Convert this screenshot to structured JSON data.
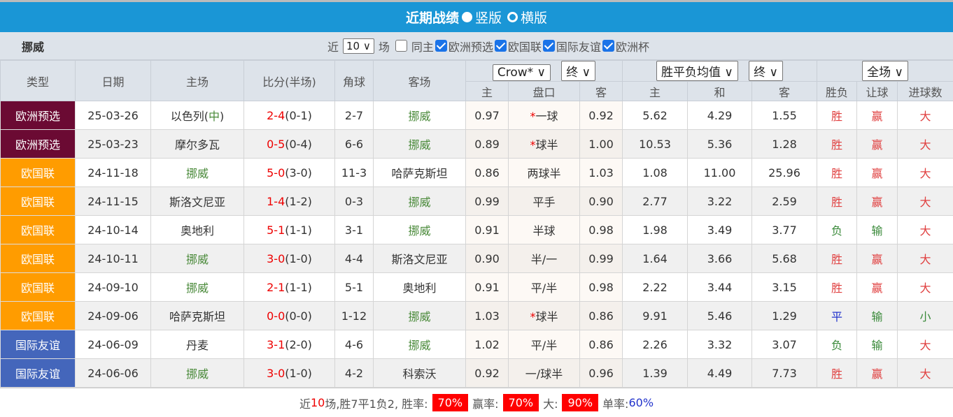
{
  "title": "近期战绩",
  "view_options": [
    "竖版",
    "横版"
  ],
  "view_selected": "竖版",
  "team": "挪威",
  "filters": {
    "prefix": "近",
    "count": "10",
    "suffix": "场",
    "same_home": "同主",
    "same_home_checked": false,
    "competitions": [
      {
        "label": "欧洲预选",
        "checked": true
      },
      {
        "label": "欧国联",
        "checked": true
      },
      {
        "label": "国际友谊",
        "checked": true
      },
      {
        "label": "欧洲杯",
        "checked": true
      }
    ]
  },
  "headers": {
    "type": "类型",
    "date": "日期",
    "home": "主场",
    "score": "比分(半场)",
    "corner": "角球",
    "away": "客场",
    "ah_company": "Crow*",
    "ah_stage": "终",
    "eu_type": "胜平负均值",
    "eu_stage": "终",
    "period": "全场",
    "ah_home": "主",
    "ah_line": "盘口",
    "ah_away": "客",
    "eu_home": "主",
    "eu_draw": "和",
    "eu_away": "客",
    "result": "胜负",
    "handicap": "让球",
    "goals": "进球数"
  },
  "colors": {
    "欧洲预选": "#6b0a33",
    "欧国联": "#ff9c00",
    "国际友谊": "#4466bb"
  },
  "rows": [
    {
      "type": "欧洲预选",
      "date": "25-03-26",
      "home": "以色列",
      "neutral": "中",
      "score": "2-4",
      "half": "(0-1)",
      "corner": "2-7",
      "away": "挪威",
      "team_side": "away",
      "ah_h": "0.97",
      "star": "*",
      "line": "一球",
      "ah_a": "0.92",
      "w": "5.62",
      "d": "4.29",
      "l": "1.55",
      "res": "胜",
      "hc": "赢",
      "ou": "大"
    },
    {
      "type": "欧洲预选",
      "date": "25-03-23",
      "home": "摩尔多瓦",
      "neutral": "",
      "score": "0-5",
      "half": "(0-4)",
      "corner": "6-6",
      "away": "挪威",
      "team_side": "away",
      "ah_h": "0.89",
      "star": "*",
      "line": "球半",
      "ah_a": "1.00",
      "w": "10.53",
      "d": "5.36",
      "l": "1.28",
      "res": "胜",
      "hc": "赢",
      "ou": "大"
    },
    {
      "type": "欧国联",
      "date": "24-11-18",
      "home": "挪威",
      "neutral": "",
      "score": "5-0",
      "half": "(3-0)",
      "corner": "11-3",
      "away": "哈萨克斯坦",
      "team_side": "home",
      "ah_h": "0.86",
      "star": "",
      "line": "两球半",
      "ah_a": "1.03",
      "w": "1.08",
      "d": "11.00",
      "l": "25.96",
      "res": "胜",
      "hc": "赢",
      "ou": "大"
    },
    {
      "type": "欧国联",
      "date": "24-11-15",
      "home": "斯洛文尼亚",
      "neutral": "",
      "score": "1-4",
      "half": "(1-2)",
      "corner": "0-3",
      "away": "挪威",
      "team_side": "away",
      "ah_h": "0.99",
      "star": "",
      "line": "平手",
      "ah_a": "0.90",
      "w": "2.77",
      "d": "3.22",
      "l": "2.59",
      "res": "胜",
      "hc": "赢",
      "ou": "大"
    },
    {
      "type": "欧国联",
      "date": "24-10-14",
      "home": "奥地利",
      "neutral": "",
      "score": "5-1",
      "half": "(1-1)",
      "corner": "3-1",
      "away": "挪威",
      "team_side": "away",
      "ah_h": "0.91",
      "star": "",
      "line": "半球",
      "ah_a": "0.98",
      "w": "1.98",
      "d": "3.49",
      "l": "3.77",
      "res": "负",
      "hc": "输",
      "ou": "大"
    },
    {
      "type": "欧国联",
      "date": "24-10-11",
      "home": "挪威",
      "neutral": "",
      "score": "3-0",
      "half": "(1-0)",
      "corner": "4-4",
      "away": "斯洛文尼亚",
      "team_side": "home",
      "ah_h": "0.90",
      "star": "",
      "line": "半/一",
      "ah_a": "0.99",
      "w": "1.64",
      "d": "3.66",
      "l": "5.68",
      "res": "胜",
      "hc": "赢",
      "ou": "大"
    },
    {
      "type": "欧国联",
      "date": "24-09-10",
      "home": "挪威",
      "neutral": "",
      "score": "2-1",
      "half": "(1-1)",
      "corner": "5-1",
      "away": "奥地利",
      "team_side": "home",
      "ah_h": "0.91",
      "star": "",
      "line": "平/半",
      "ah_a": "0.98",
      "w": "2.22",
      "d": "3.44",
      "l": "3.15",
      "res": "胜",
      "hc": "赢",
      "ou": "大"
    },
    {
      "type": "欧国联",
      "date": "24-09-06",
      "home": "哈萨克斯坦",
      "neutral": "",
      "score": "0-0",
      "half": "(0-0)",
      "corner": "1-12",
      "away": "挪威",
      "team_side": "away",
      "ah_h": "1.03",
      "star": "*",
      "line": "球半",
      "ah_a": "0.86",
      "w": "9.91",
      "d": "5.46",
      "l": "1.29",
      "res": "平",
      "hc": "输",
      "ou": "小"
    },
    {
      "type": "国际友谊",
      "date": "24-06-09",
      "home": "丹麦",
      "neutral": "",
      "score": "3-1",
      "half": "(2-0)",
      "corner": "4-6",
      "away": "挪威",
      "team_side": "away",
      "ah_h": "1.02",
      "star": "",
      "line": "平/半",
      "ah_a": "0.86",
      "w": "2.26",
      "d": "3.32",
      "l": "3.07",
      "res": "负",
      "hc": "输",
      "ou": "大"
    },
    {
      "type": "国际友谊",
      "date": "24-06-06",
      "home": "挪威",
      "neutral": "",
      "score": "3-0",
      "half": "(1-0)",
      "corner": "4-2",
      "away": "科索沃",
      "team_side": "home",
      "ah_h": "0.92",
      "star": "",
      "line": "一/球半",
      "ah_a": "0.96",
      "w": "1.39",
      "d": "4.49",
      "l": "7.73",
      "res": "胜",
      "hc": "赢",
      "ou": "大"
    }
  ],
  "summary": {
    "p1": "近",
    "n": "10",
    "p2": "场,胜7平1负2, 胜率:",
    "win_rate": "70%",
    "p3": "赢率:",
    "hc_rate": "70%",
    "p4": "大:",
    "over_rate": "90%",
    "p5": "单率:",
    "odd_rate": "60%"
  }
}
